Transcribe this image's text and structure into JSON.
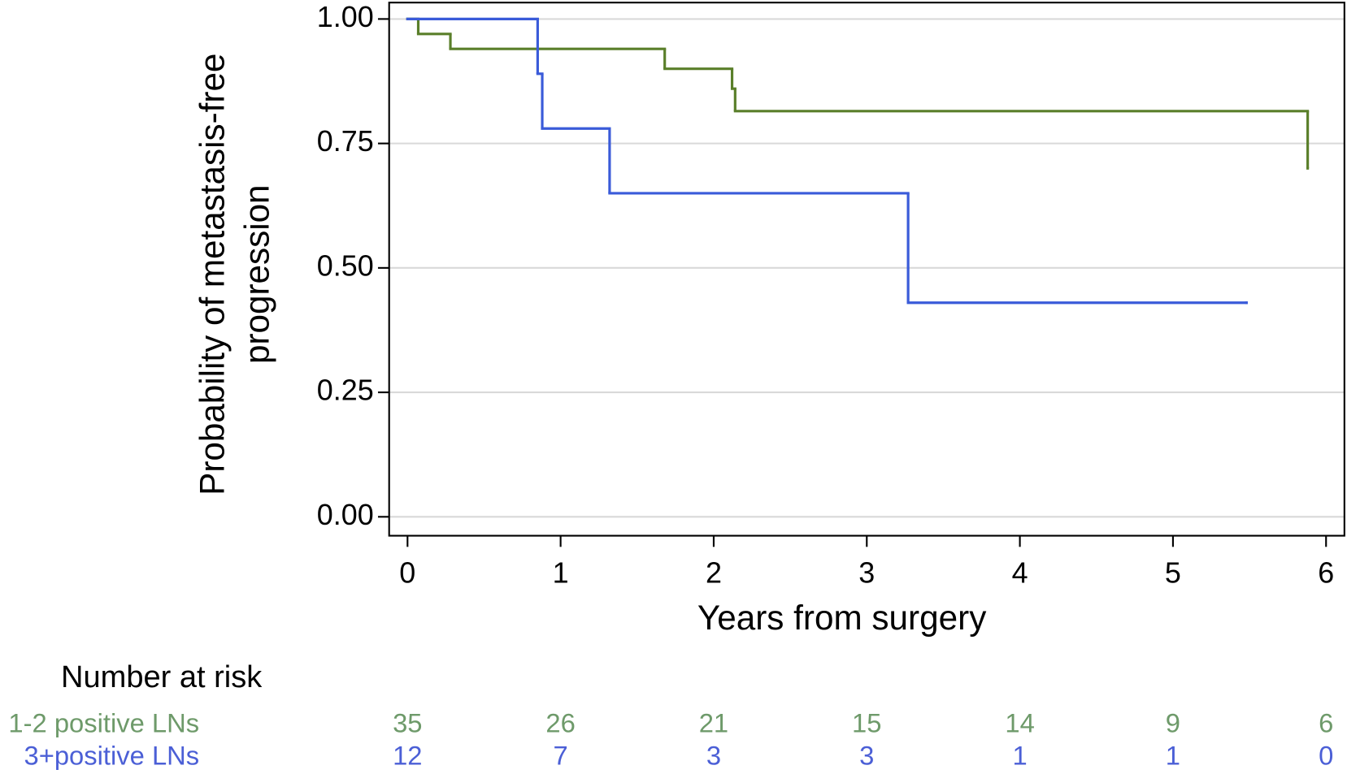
{
  "chart_data": {
    "type": "step",
    "ylabel": [
      "Probability of metastasis-free",
      "progression"
    ],
    "xlabel": "Years from surgery",
    "xlim": [
      -0.12,
      6.12
    ],
    "ylim": [
      -0.038,
      1.033
    ],
    "xticks": [
      0,
      1,
      2,
      3,
      4,
      5,
      6
    ],
    "yticks": [
      {
        "value": 0,
        "label": "0.00"
      },
      {
        "value": 0.25,
        "label": "0.25"
      },
      {
        "value": 0.5,
        "label": "0.50"
      },
      {
        "value": 0.75,
        "label": "0.75"
      },
      {
        "value": 1,
        "label": "1.00"
      }
    ],
    "grid": true,
    "series": [
      {
        "name": "1-2 positive LNs",
        "color": "#5a7f2a",
        "x": [
          0,
          0.07,
          0.28,
          1.68,
          2.12,
          2.14,
          5.88
        ],
        "values": [
          1,
          0.97,
          0.94,
          0.9,
          0.86,
          0.815,
          0.7
        ]
      },
      {
        "name": "3+positive LNs",
        "color": "#3a5bd9",
        "x": [
          0,
          0.85,
          0.88,
          1.32,
          3.27,
          5.48
        ],
        "values": [
          1,
          0.89,
          0.78,
          0.65,
          0.43,
          0.43
        ]
      }
    ],
    "risk_table": {
      "title": "Number at risk",
      "rows": [
        {
          "name": "1-2 positive LNs",
          "color": "#6e9a6a",
          "values": [
            35,
            26,
            21,
            15,
            14,
            9,
            6
          ]
        },
        {
          "name": "3+positive LNs",
          "color": "#4b5fd6",
          "values": [
            12,
            7,
            3,
            3,
            1,
            1,
            0
          ]
        }
      ]
    }
  }
}
